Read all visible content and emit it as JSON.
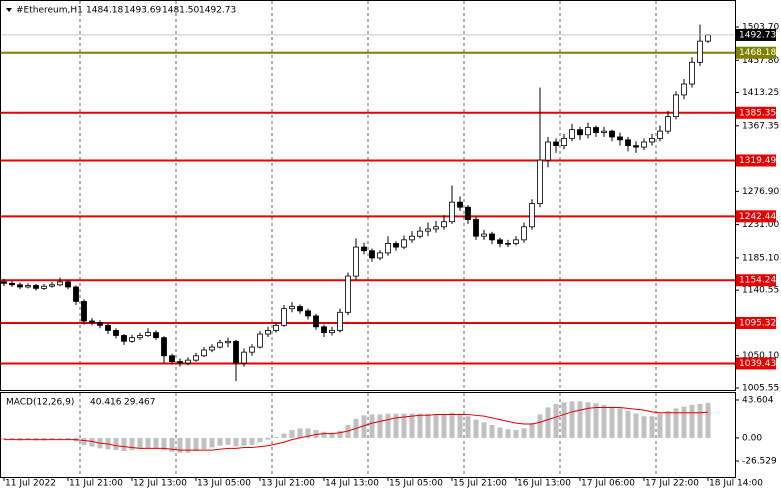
{
  "chart_data": {
    "type": "candlestick",
    "title": "#Ethereum,H1",
    "title_values": [
      "1484.18",
      "1493.69",
      "1481.50",
      "1492.73"
    ],
    "categories": [
      "11 Jul 2022",
      null,
      null,
      null,
      null,
      null,
      null,
      null,
      "11 Jul 21:00",
      null,
      null,
      null,
      null,
      null,
      null,
      null,
      "12 Jul 13:00",
      null,
      null,
      null,
      null,
      null,
      null,
      null,
      "13 Jul 05:00",
      null,
      null,
      null,
      null,
      null,
      null,
      null,
      "13 Jul 21:00",
      null,
      null,
      null,
      null,
      null,
      null,
      null,
      "14 Jul 13:00",
      null,
      null,
      null,
      null,
      null,
      null,
      null,
      "15 Jul 05:00",
      null,
      null,
      null,
      null,
      null,
      null,
      null,
      "15 Jul 21:00",
      null,
      null,
      null,
      null,
      null,
      null,
      null,
      "16 Jul 13:00",
      null,
      null,
      null,
      null,
      null,
      null,
      null,
      "17 Jul 06:00",
      null,
      null,
      null,
      null,
      null,
      null,
      null,
      "17 Jul 22:00",
      null,
      null,
      null,
      null,
      null,
      null,
      null,
      "18 Jul 14:00"
    ],
    "ohlc": [
      [
        1152,
        1156,
        1146,
        1150
      ],
      [
        1150,
        1153,
        1145,
        1148
      ],
      [
        1148,
        1151,
        1142,
        1145
      ],
      [
        1145,
        1150,
        1143,
        1147
      ],
      [
        1147,
        1149,
        1140,
        1143
      ],
      [
        1143,
        1149,
        1141,
        1146
      ],
      [
        1146,
        1152,
        1144,
        1148
      ],
      [
        1148,
        1158,
        1146,
        1152
      ],
      [
        1152,
        1155,
        1142,
        1145
      ],
      [
        1145,
        1147,
        1120,
        1125
      ],
      [
        1125,
        1128,
        1093,
        1098
      ],
      [
        1098,
        1102,
        1092,
        1096
      ],
      [
        1096,
        1099,
        1088,
        1092
      ],
      [
        1092,
        1095,
        1080,
        1085
      ],
      [
        1085,
        1088,
        1074,
        1078
      ],
      [
        1078,
        1080,
        1065,
        1070
      ],
      [
        1070,
        1079,
        1068,
        1075
      ],
      [
        1075,
        1082,
        1072,
        1078
      ],
      [
        1078,
        1088,
        1076,
        1082
      ],
      [
        1082,
        1085,
        1072,
        1075
      ],
      [
        1075,
        1077,
        1040,
        1050
      ],
      [
        1050,
        1053,
        1038,
        1042
      ],
      [
        1042,
        1046,
        1035,
        1040
      ],
      [
        1040,
        1048,
        1037,
        1044
      ],
      [
        1044,
        1054,
        1042,
        1050
      ],
      [
        1050,
        1062,
        1048,
        1058
      ],
      [
        1058,
        1066,
        1055,
        1062
      ],
      [
        1062,
        1072,
        1060,
        1068
      ],
      [
        1068,
        1075,
        1062,
        1070
      ],
      [
        1070,
        1072,
        1015,
        1040
      ],
      [
        1040,
        1060,
        1035,
        1055
      ],
      [
        1055,
        1066,
        1050,
        1062
      ],
      [
        1062,
        1084,
        1060,
        1080
      ],
      [
        1080,
        1090,
        1076,
        1085
      ],
      [
        1085,
        1096,
        1082,
        1092
      ],
      [
        1092,
        1120,
        1090,
        1115
      ],
      [
        1115,
        1124,
        1110,
        1118
      ],
      [
        1118,
        1121,
        1108,
        1112
      ],
      [
        1112,
        1115,
        1100,
        1105
      ],
      [
        1105,
        1108,
        1086,
        1090
      ],
      [
        1090,
        1093,
        1076,
        1082
      ],
      [
        1082,
        1090,
        1078,
        1085
      ],
      [
        1085,
        1115,
        1082,
        1110
      ],
      [
        1110,
        1165,
        1106,
        1160
      ],
      [
        1160,
        1212,
        1155,
        1200
      ],
      [
        1200,
        1206,
        1190,
        1195
      ],
      [
        1195,
        1198,
        1180,
        1185
      ],
      [
        1185,
        1196,
        1182,
        1192
      ],
      [
        1192,
        1215,
        1188,
        1205
      ],
      [
        1205,
        1208,
        1195,
        1200
      ],
      [
        1200,
        1216,
        1197,
        1210
      ],
      [
        1210,
        1222,
        1206,
        1215
      ],
      [
        1215,
        1228,
        1212,
        1222
      ],
      [
        1222,
        1234,
        1215,
        1225
      ],
      [
        1225,
        1236,
        1220,
        1228
      ],
      [
        1228,
        1244,
        1224,
        1235
      ],
      [
        1235,
        1285,
        1232,
        1262
      ],
      [
        1262,
        1270,
        1250,
        1255
      ],
      [
        1255,
        1258,
        1232,
        1238
      ],
      [
        1238,
        1242,
        1210,
        1215
      ],
      [
        1215,
        1224,
        1210,
        1218
      ],
      [
        1218,
        1221,
        1204,
        1210
      ],
      [
        1210,
        1213,
        1200,
        1205
      ],
      [
        1205,
        1210,
        1200,
        1205
      ],
      [
        1205,
        1215,
        1202,
        1210
      ],
      [
        1210,
        1234,
        1206,
        1228
      ],
      [
        1228,
        1266,
        1224,
        1260
      ],
      [
        1260,
        1420,
        1255,
        1320
      ],
      [
        1320,
        1352,
        1310,
        1345
      ],
      [
        1345,
        1350,
        1330,
        1340
      ],
      [
        1340,
        1356,
        1335,
        1350
      ],
      [
        1350,
        1370,
        1346,
        1362
      ],
      [
        1362,
        1366,
        1348,
        1355
      ],
      [
        1355,
        1372,
        1350,
        1365
      ],
      [
        1365,
        1368,
        1352,
        1358
      ],
      [
        1358,
        1366,
        1352,
        1360
      ],
      [
        1360,
        1362,
        1346,
        1352
      ],
      [
        1352,
        1358,
        1340,
        1348
      ],
      [
        1348,
        1352,
        1332,
        1340
      ],
      [
        1340,
        1346,
        1330,
        1338
      ],
      [
        1338,
        1350,
        1334,
        1345
      ],
      [
        1345,
        1356,
        1340,
        1350
      ],
      [
        1350,
        1368,
        1346,
        1360
      ],
      [
        1360,
        1388,
        1356,
        1380
      ],
      [
        1380,
        1415,
        1376,
        1410
      ],
      [
        1410,
        1432,
        1404,
        1425
      ],
      [
        1425,
        1462,
        1420,
        1455
      ],
      [
        1455,
        1507,
        1450,
        1484.18
      ],
      [
        1484.18,
        1493.69,
        1481.5,
        1492.73
      ]
    ],
    "ylim": [
      1005.55,
      1503.7
    ],
    "yticks": [
      {
        "value": 1503.7,
        "label": "1503.70"
      },
      {
        "value": 1457.8,
        "label": "1457.80"
      },
      1413.25,
      1367.35,
      {
        "value": 1276.9,
        "label": "1276.90"
      },
      {
        "value": 1231,
        "label": "1231.00"
      },
      {
        "value": 1185.1,
        "label": "1185.10"
      },
      1140.55,
      {
        "value": 1050.1,
        "label": "1050.10"
      },
      1005.55
    ],
    "levels": [
      {
        "value": 1468.18,
        "color": "#808000"
      },
      {
        "value": 1385.35,
        "color": "#e60000"
      },
      {
        "value": 1319.49,
        "color": "#e60000"
      },
      {
        "value": 1242.44,
        "color": "#e60000"
      },
      {
        "value": 1154.24,
        "color": "#e60000"
      },
      {
        "value": 1095.32,
        "color": "#e60000"
      },
      {
        "value": 1039.43,
        "color": "#e60000"
      }
    ],
    "grid": true,
    "macd": {
      "title": "MACD(12,26,9)",
      "ylim": [
        -26.529,
        43.604
      ],
      "yticks": [
        43.604,
        {
          "value": 0,
          "label": "0.00"
        },
        -26.529
      ],
      "hist_color": "#c0c0c0",
      "signal_color": "#e60000",
      "histogram": [
        -2,
        -2,
        -3,
        -2,
        -3,
        -3,
        -2,
        -1,
        -2,
        -4,
        -8,
        -10,
        -12,
        -13,
        -14,
        -15,
        -14,
        -13,
        -12,
        -12,
        -14,
        -16,
        -17,
        -17,
        -15,
        -13,
        -11,
        -9,
        -8,
        -10,
        -9,
        -8,
        -5,
        -2,
        1,
        5,
        9,
        11,
        11,
        9,
        7,
        6,
        8,
        15,
        22,
        26,
        27,
        27,
        28,
        28,
        28,
        28,
        28,
        28,
        27,
        27,
        29,
        28,
        25,
        21,
        18,
        15,
        12,
        10,
        9,
        11,
        17,
        27,
        35,
        39,
        41,
        42,
        42,
        41,
        40,
        38,
        36,
        34,
        31,
        28,
        25,
        25,
        28,
        31,
        34,
        36,
        38,
        39,
        40.416
      ],
      "signal": [
        -2,
        -2,
        -2,
        -2,
        -2,
        -2,
        -2,
        -2,
        -2,
        -2,
        -3,
        -4,
        -6,
        -7,
        -9,
        -10,
        -11,
        -12,
        -12,
        -12,
        -12,
        -13,
        -14,
        -14,
        -14,
        -14,
        -14,
        -13,
        -12,
        -12,
        -11,
        -11,
        -10,
        -9,
        -7,
        -5,
        -2,
        0,
        2,
        4,
        5,
        5,
        6,
        8,
        11,
        14,
        17,
        19,
        21,
        23,
        24,
        25,
        26,
        26,
        27,
        27,
        27,
        27,
        27,
        26,
        25,
        23,
        21,
        19,
        17,
        16,
        16,
        18,
        21,
        24,
        27,
        30,
        32,
        34,
        35,
        35,
        35,
        35,
        34,
        33,
        32,
        30,
        29,
        29,
        29,
        29,
        29,
        29,
        29.467
      ]
    }
  }
}
